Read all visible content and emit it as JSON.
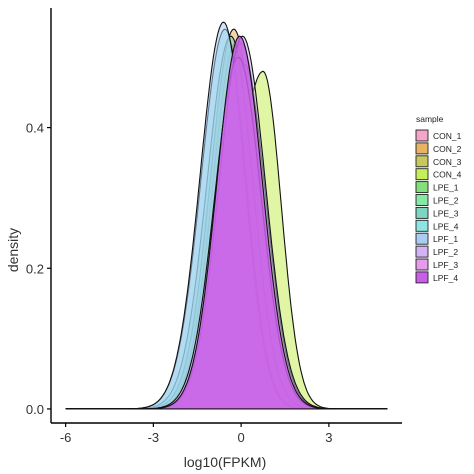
{
  "chart_data": {
    "type": "area",
    "xlabel": "log10(FPKM)",
    "ylabel": "density",
    "xlim": [
      -6.5,
      5.5
    ],
    "ylim": [
      -0.02,
      0.57
    ],
    "x_ticks": [
      -6,
      -3,
      0,
      3
    ],
    "x_tick_labels": [
      "-6",
      "-3",
      "0",
      "3"
    ],
    "y_ticks": [
      0.0,
      0.2,
      0.4
    ],
    "y_tick_labels": [
      "0.0",
      "0.2",
      "0.4"
    ],
    "grid": false,
    "legend": {
      "title": "sample",
      "placement": "right",
      "entries": [
        "CON_1",
        "CON_2",
        "CON_3",
        "CON_4",
        "LPE_1",
        "LPE_2",
        "LPE_3",
        "LPE_4",
        "LPF_1",
        "LPF_2",
        "LPF_3",
        "LPF_4"
      ]
    },
    "series": [
      {
        "name": "CON_1",
        "color": "#F4A6C8",
        "mu": -0.2,
        "sigL": 0.78,
        "sigR": 0.78,
        "peak": 0.52
      },
      {
        "name": "CON_2",
        "color": "#E8B464",
        "mu": -0.25,
        "sigL": 0.8,
        "sigR": 0.78,
        "peak": 0.54
      },
      {
        "name": "CON_3",
        "color": "#C8C860",
        "mu": 0.0,
        "sigL": 0.8,
        "sigR": 0.78,
        "peak": 0.52
      },
      {
        "name": "CON_4",
        "color": "#C6EE5A",
        "mu": 0.75,
        "sigL": 0.95,
        "sigR": 0.62,
        "peak": 0.48
      },
      {
        "name": "LPE_1",
        "color": "#84E07E",
        "mu": -0.05,
        "sigL": 0.8,
        "sigR": 0.75,
        "peak": 0.5
      },
      {
        "name": "LPE_2",
        "color": "#88E8A6",
        "mu": 0.1,
        "sigL": 0.8,
        "sigR": 0.75,
        "peak": 0.49
      },
      {
        "name": "LPE_3",
        "color": "#7ED6C0",
        "mu": -0.35,
        "sigL": 0.82,
        "sigR": 0.75,
        "peak": 0.53
      },
      {
        "name": "LPE_4",
        "color": "#8CE4E4",
        "mu": -0.55,
        "sigL": 0.82,
        "sigR": 0.72,
        "peak": 0.54
      },
      {
        "name": "LPF_1",
        "color": "#A8CCF4",
        "mu": -0.6,
        "sigL": 0.8,
        "sigR": 0.72,
        "peak": 0.55
      },
      {
        "name": "LPF_2",
        "color": "#D2B4F6",
        "mu": 0.05,
        "sigL": 0.8,
        "sigR": 0.78,
        "peak": 0.53
      },
      {
        "name": "LPF_3",
        "color": "#E69CEC",
        "mu": -0.1,
        "sigL": 0.8,
        "sigR": 0.78,
        "peak": 0.5
      },
      {
        "name": "LPF_4",
        "color": "#C95EE8",
        "mu": -0.05,
        "sigL": 0.78,
        "sigR": 0.78,
        "peak": 0.53
      }
    ]
  }
}
